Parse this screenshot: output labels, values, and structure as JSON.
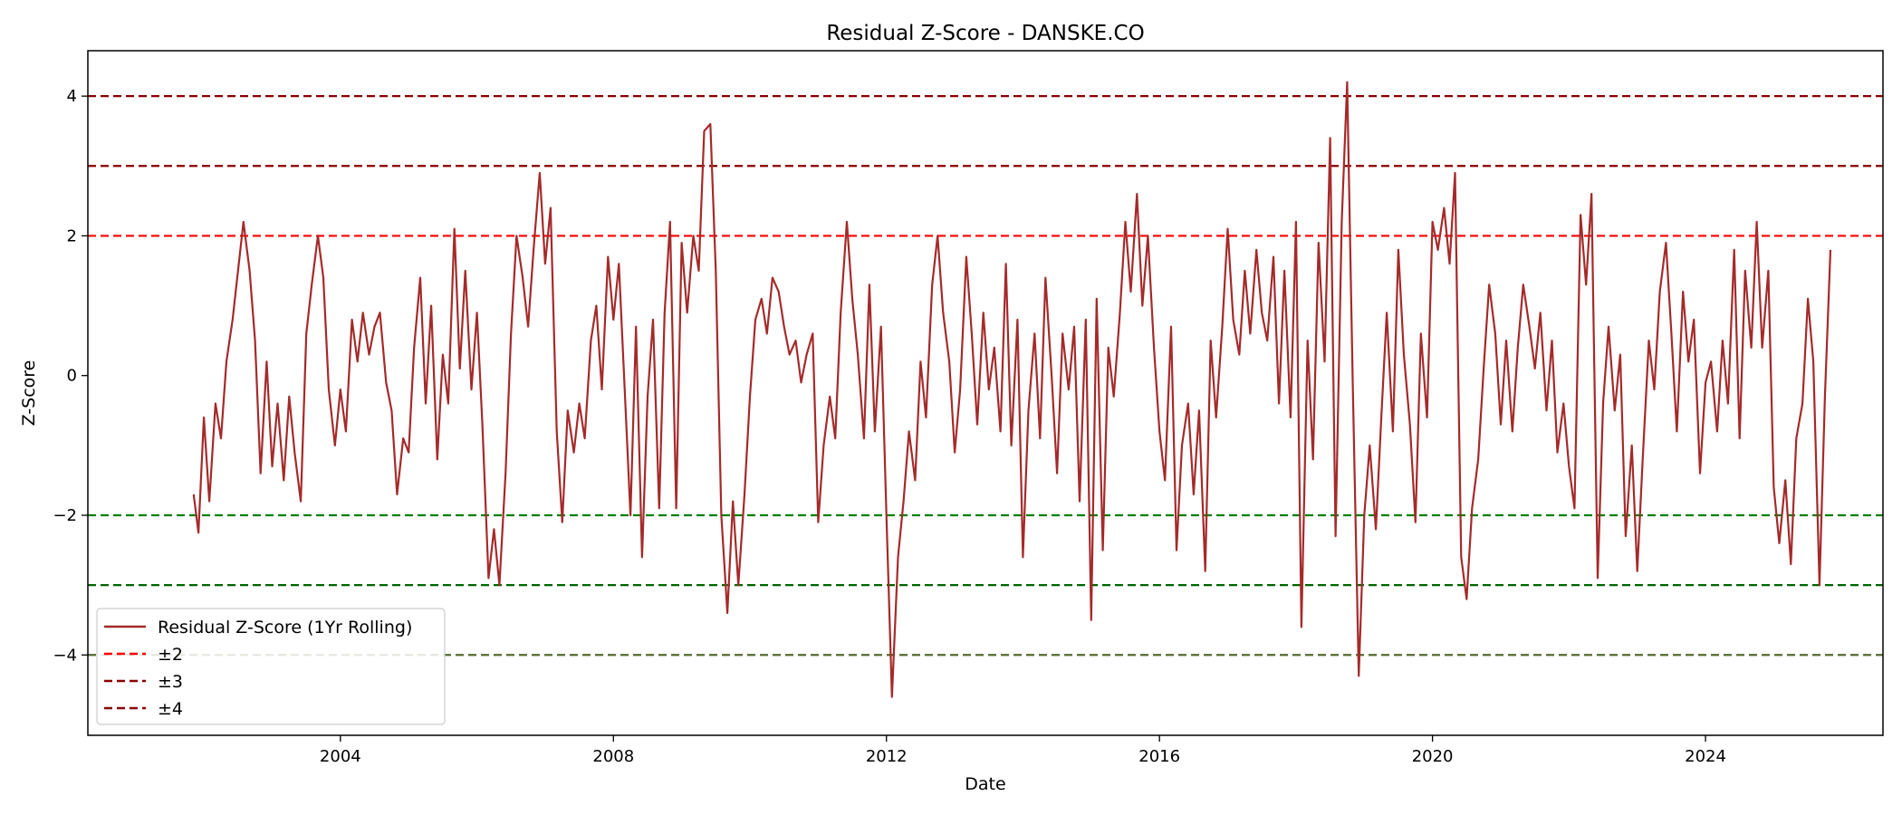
{
  "chart_data": {
    "type": "line",
    "title": "Residual Z-Score - DANSKE.CO",
    "xlabel": "Date",
    "ylabel": "Z-Score",
    "xlim": [
      2000.3,
      2026.6
    ],
    "ylim": [
      -5.15,
      4.65
    ],
    "x_ticks": [
      2004,
      2008,
      2012,
      2016,
      2020,
      2024
    ],
    "y_ticks": [
      -4,
      -2,
      0,
      2,
      4
    ],
    "y_tick_labels": [
      "−4",
      "−2",
      "0",
      "2",
      "4"
    ],
    "grid": false,
    "legend_position": "lower-left",
    "series": [
      {
        "name": "Residual Z-Score (1Yr Rolling)",
        "color": "#a52a2a",
        "points": [
          [
            2001.85,
            -1.7
          ],
          [
            2001.92,
            -2.25
          ],
          [
            2002.0,
            -0.6
          ],
          [
            2002.08,
            -1.8
          ],
          [
            2002.17,
            -0.4
          ],
          [
            2002.25,
            -0.9
          ],
          [
            2002.33,
            0.2
          ],
          [
            2002.42,
            0.8
          ],
          [
            2002.5,
            1.5
          ],
          [
            2002.58,
            2.2
          ],
          [
            2002.67,
            1.5
          ],
          [
            2002.75,
            0.5
          ],
          [
            2002.83,
            -1.4
          ],
          [
            2002.92,
            0.2
          ],
          [
            2003.0,
            -1.3
          ],
          [
            2003.08,
            -0.4
          ],
          [
            2003.17,
            -1.5
          ],
          [
            2003.25,
            -0.3
          ],
          [
            2003.33,
            -1.1
          ],
          [
            2003.42,
            -1.8
          ],
          [
            2003.5,
            0.6
          ],
          [
            2003.58,
            1.3
          ],
          [
            2003.67,
            2.0
          ],
          [
            2003.75,
            1.4
          ],
          [
            2003.83,
            -0.2
          ],
          [
            2003.92,
            -1.0
          ],
          [
            2004.0,
            -0.2
          ],
          [
            2004.08,
            -0.8
          ],
          [
            2004.17,
            0.8
          ],
          [
            2004.25,
            0.2
          ],
          [
            2004.33,
            0.9
          ],
          [
            2004.42,
            0.3
          ],
          [
            2004.5,
            0.7
          ],
          [
            2004.58,
            0.9
          ],
          [
            2004.67,
            -0.1
          ],
          [
            2004.75,
            -0.5
          ],
          [
            2004.83,
            -1.7
          ],
          [
            2004.92,
            -0.9
          ],
          [
            2005.0,
            -1.1
          ],
          [
            2005.08,
            0.4
          ],
          [
            2005.17,
            1.4
          ],
          [
            2005.25,
            -0.4
          ],
          [
            2005.33,
            1.0
          ],
          [
            2005.42,
            -1.2
          ],
          [
            2005.5,
            0.3
          ],
          [
            2005.58,
            -0.4
          ],
          [
            2005.67,
            2.1
          ],
          [
            2005.75,
            0.1
          ],
          [
            2005.83,
            1.5
          ],
          [
            2005.92,
            -0.2
          ],
          [
            2006.0,
            0.9
          ],
          [
            2006.08,
            -0.7
          ],
          [
            2006.17,
            -2.9
          ],
          [
            2006.25,
            -2.2
          ],
          [
            2006.33,
            -3.0
          ],
          [
            2006.42,
            -1.4
          ],
          [
            2006.5,
            0.6
          ],
          [
            2006.58,
            2.0
          ],
          [
            2006.67,
            1.4
          ],
          [
            2006.75,
            0.7
          ],
          [
            2006.83,
            1.8
          ],
          [
            2006.92,
            2.9
          ],
          [
            2007.0,
            1.6
          ],
          [
            2007.08,
            2.4
          ],
          [
            2007.17,
            -0.8
          ],
          [
            2007.25,
            -2.1
          ],
          [
            2007.33,
            -0.5
          ],
          [
            2007.42,
            -1.1
          ],
          [
            2007.5,
            -0.4
          ],
          [
            2007.58,
            -0.9
          ],
          [
            2007.67,
            0.5
          ],
          [
            2007.75,
            1.0
          ],
          [
            2007.83,
            -0.2
          ],
          [
            2007.92,
            1.7
          ],
          [
            2008.0,
            0.8
          ],
          [
            2008.08,
            1.6
          ],
          [
            2008.17,
            -0.3
          ],
          [
            2008.25,
            -2.0
          ],
          [
            2008.33,
            0.7
          ],
          [
            2008.42,
            -2.6
          ],
          [
            2008.5,
            -0.3
          ],
          [
            2008.58,
            0.8
          ],
          [
            2008.67,
            -1.9
          ],
          [
            2008.75,
            0.9
          ],
          [
            2008.83,
            2.2
          ],
          [
            2008.92,
            -1.9
          ],
          [
            2009.0,
            1.9
          ],
          [
            2009.08,
            0.9
          ],
          [
            2009.17,
            2.0
          ],
          [
            2009.25,
            1.5
          ],
          [
            2009.33,
            3.5
          ],
          [
            2009.42,
            3.6
          ],
          [
            2009.5,
            1.5
          ],
          [
            2009.58,
            -2.0
          ],
          [
            2009.67,
            -3.4
          ],
          [
            2009.75,
            -1.8
          ],
          [
            2009.83,
            -3.0
          ],
          [
            2009.92,
            -1.7
          ],
          [
            2010.0,
            -0.3
          ],
          [
            2010.08,
            0.8
          ],
          [
            2010.17,
            1.1
          ],
          [
            2010.25,
            0.6
          ],
          [
            2010.33,
            1.4
          ],
          [
            2010.42,
            1.2
          ],
          [
            2010.5,
            0.7
          ],
          [
            2010.58,
            0.3
          ],
          [
            2010.67,
            0.5
          ],
          [
            2010.75,
            -0.1
          ],
          [
            2010.83,
            0.3
          ],
          [
            2010.92,
            0.6
          ],
          [
            2011.0,
            -2.1
          ],
          [
            2011.08,
            -1.0
          ],
          [
            2011.17,
            -0.3
          ],
          [
            2011.25,
            -0.9
          ],
          [
            2011.33,
            0.9
          ],
          [
            2011.42,
            2.2
          ],
          [
            2011.5,
            1.1
          ],
          [
            2011.58,
            0.3
          ],
          [
            2011.67,
            -0.9
          ],
          [
            2011.75,
            1.3
          ],
          [
            2011.83,
            -0.8
          ],
          [
            2011.92,
            0.7
          ],
          [
            2012.0,
            -2.0
          ],
          [
            2012.08,
            -4.6
          ],
          [
            2012.17,
            -2.6
          ],
          [
            2012.25,
            -1.8
          ],
          [
            2012.33,
            -0.8
          ],
          [
            2012.42,
            -1.5
          ],
          [
            2012.5,
            0.2
          ],
          [
            2012.58,
            -0.6
          ],
          [
            2012.67,
            1.3
          ],
          [
            2012.75,
            2.0
          ],
          [
            2012.83,
            0.9
          ],
          [
            2012.92,
            0.2
          ],
          [
            2013.0,
            -1.1
          ],
          [
            2013.08,
            -0.2
          ],
          [
            2013.17,
            1.7
          ],
          [
            2013.25,
            0.6
          ],
          [
            2013.33,
            -0.7
          ],
          [
            2013.42,
            0.9
          ],
          [
            2013.5,
            -0.2
          ],
          [
            2013.58,
            0.4
          ],
          [
            2013.67,
            -0.8
          ],
          [
            2013.75,
            1.6
          ],
          [
            2013.83,
            -1.0
          ],
          [
            2013.92,
            0.8
          ],
          [
            2014.0,
            -2.6
          ],
          [
            2014.08,
            -0.5
          ],
          [
            2014.17,
            0.6
          ],
          [
            2014.25,
            -0.9
          ],
          [
            2014.33,
            1.4
          ],
          [
            2014.42,
            0.0
          ],
          [
            2014.5,
            -1.4
          ],
          [
            2014.58,
            0.6
          ],
          [
            2014.67,
            -0.2
          ],
          [
            2014.75,
            0.7
          ],
          [
            2014.83,
            -1.8
          ],
          [
            2014.92,
            0.8
          ],
          [
            2015.0,
            -3.5
          ],
          [
            2015.08,
            1.1
          ],
          [
            2015.17,
            -2.5
          ],
          [
            2015.25,
            0.4
          ],
          [
            2015.33,
            -0.3
          ],
          [
            2015.42,
            0.9
          ],
          [
            2015.5,
            2.2
          ],
          [
            2015.58,
            1.2
          ],
          [
            2015.67,
            2.6
          ],
          [
            2015.75,
            1.0
          ],
          [
            2015.83,
            2.0
          ],
          [
            2015.92,
            0.4
          ],
          [
            2016.0,
            -0.8
          ],
          [
            2016.08,
            -1.5
          ],
          [
            2016.17,
            0.7
          ],
          [
            2016.25,
            -2.5
          ],
          [
            2016.33,
            -1.0
          ],
          [
            2016.42,
            -0.4
          ],
          [
            2016.5,
            -1.7
          ],
          [
            2016.58,
            -0.5
          ],
          [
            2016.67,
            -2.8
          ],
          [
            2016.75,
            0.5
          ],
          [
            2016.83,
            -0.6
          ],
          [
            2016.92,
            0.7
          ],
          [
            2017.0,
            2.1
          ],
          [
            2017.08,
            0.8
          ],
          [
            2017.17,
            0.3
          ],
          [
            2017.25,
            1.5
          ],
          [
            2017.33,
            0.6
          ],
          [
            2017.42,
            1.8
          ],
          [
            2017.5,
            0.9
          ],
          [
            2017.58,
            0.5
          ],
          [
            2017.67,
            1.7
          ],
          [
            2017.75,
            -0.4
          ],
          [
            2017.83,
            1.5
          ],
          [
            2017.92,
            -0.6
          ],
          [
            2018.0,
            2.2
          ],
          [
            2018.08,
            -3.6
          ],
          [
            2018.17,
            0.5
          ],
          [
            2018.25,
            -1.2
          ],
          [
            2018.33,
            1.9
          ],
          [
            2018.42,
            0.2
          ],
          [
            2018.5,
            3.4
          ],
          [
            2018.58,
            -2.3
          ],
          [
            2018.67,
            2.2
          ],
          [
            2018.75,
            4.2
          ],
          [
            2018.83,
            0.0
          ],
          [
            2018.92,
            -4.3
          ],
          [
            2019.0,
            -2.0
          ],
          [
            2019.08,
            -1.0
          ],
          [
            2019.17,
            -2.2
          ],
          [
            2019.25,
            -0.6
          ],
          [
            2019.33,
            0.9
          ],
          [
            2019.42,
            -0.8
          ],
          [
            2019.5,
            1.8
          ],
          [
            2019.58,
            0.3
          ],
          [
            2019.67,
            -0.7
          ],
          [
            2019.75,
            -2.1
          ],
          [
            2019.83,
            0.6
          ],
          [
            2019.92,
            -0.6
          ],
          [
            2020.0,
            2.2
          ],
          [
            2020.08,
            1.8
          ],
          [
            2020.17,
            2.4
          ],
          [
            2020.25,
            1.6
          ],
          [
            2020.33,
            2.9
          ],
          [
            2020.42,
            -2.6
          ],
          [
            2020.5,
            -3.2
          ],
          [
            2020.58,
            -1.9
          ],
          [
            2020.67,
            -1.2
          ],
          [
            2020.75,
            0.1
          ],
          [
            2020.83,
            1.3
          ],
          [
            2020.92,
            0.6
          ],
          [
            2021.0,
            -0.7
          ],
          [
            2021.08,
            0.5
          ],
          [
            2021.17,
            -0.8
          ],
          [
            2021.25,
            0.4
          ],
          [
            2021.33,
            1.3
          ],
          [
            2021.42,
            0.7
          ],
          [
            2021.5,
            0.1
          ],
          [
            2021.58,
            0.9
          ],
          [
            2021.67,
            -0.5
          ],
          [
            2021.75,
            0.5
          ],
          [
            2021.83,
            -1.1
          ],
          [
            2021.92,
            -0.4
          ],
          [
            2022.0,
            -1.3
          ],
          [
            2022.08,
            -1.9
          ],
          [
            2022.17,
            2.3
          ],
          [
            2022.25,
            1.3
          ],
          [
            2022.33,
            2.6
          ],
          [
            2022.42,
            -2.9
          ],
          [
            2022.5,
            -0.4
          ],
          [
            2022.58,
            0.7
          ],
          [
            2022.67,
            -0.5
          ],
          [
            2022.75,
            0.3
          ],
          [
            2022.83,
            -2.3
          ],
          [
            2022.92,
            -1.0
          ],
          [
            2023.0,
            -2.8
          ],
          [
            2023.08,
            -1.2
          ],
          [
            2023.17,
            0.5
          ],
          [
            2023.25,
            -0.2
          ],
          [
            2023.33,
            1.2
          ],
          [
            2023.42,
            1.9
          ],
          [
            2023.5,
            0.6
          ],
          [
            2023.58,
            -0.8
          ],
          [
            2023.67,
            1.2
          ],
          [
            2023.75,
            0.2
          ],
          [
            2023.83,
            0.8
          ],
          [
            2023.92,
            -1.4
          ],
          [
            2024.0,
            -0.1
          ],
          [
            2024.08,
            0.2
          ],
          [
            2024.17,
            -0.8
          ],
          [
            2024.25,
            0.5
          ],
          [
            2024.33,
            -0.4
          ],
          [
            2024.42,
            1.8
          ],
          [
            2024.5,
            -0.9
          ],
          [
            2024.58,
            1.5
          ],
          [
            2024.67,
            0.4
          ],
          [
            2024.75,
            2.2
          ],
          [
            2024.83,
            0.4
          ],
          [
            2024.92,
            1.5
          ],
          [
            2025.0,
            -1.6
          ],
          [
            2025.08,
            -2.4
          ],
          [
            2025.17,
            -1.5
          ],
          [
            2025.25,
            -2.7
          ],
          [
            2025.33,
            -0.9
          ],
          [
            2025.42,
            -0.4
          ],
          [
            2025.5,
            1.1
          ],
          [
            2025.58,
            0.2
          ],
          [
            2025.67,
            -3.0
          ],
          [
            2025.75,
            -0.3
          ],
          [
            2025.83,
            1.8
          ]
        ]
      }
    ],
    "reference_lines": [
      {
        "y": 4,
        "color": "#8b0000"
      },
      {
        "y": 3,
        "color": "#8b0000"
      },
      {
        "y": 2,
        "color": "#ff0000"
      },
      {
        "y": -2,
        "color": "#008000"
      },
      {
        "y": -3,
        "color": "#006400"
      },
      {
        "y": -4,
        "color": "#556b2f"
      }
    ],
    "legend": [
      {
        "label": "Residual Z-Score (1Yr Rolling)",
        "color": "#a52a2a",
        "style": "solid"
      },
      {
        "label": "±2",
        "color": "#ff0000",
        "style": "dashed"
      },
      {
        "label": "±3",
        "color": "#8b0000",
        "style": "dashed"
      },
      {
        "label": "±4",
        "color": "#8b0000",
        "style": "dashed"
      }
    ]
  }
}
